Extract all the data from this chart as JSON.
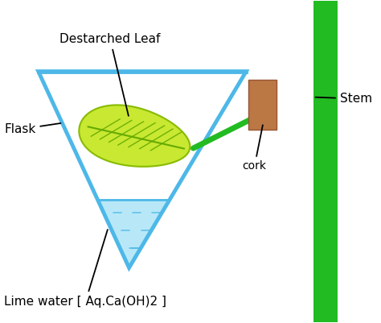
{
  "flask_color": "#4db8e8",
  "flask_linewidth": 3.5,
  "water_color": "#b8e8f8",
  "water_line_color": "#4db8e8",
  "leaf_fill_color": "#c8e832",
  "leaf_edge_color": "#88bb00",
  "leaf_vein_color": "#66aa00",
  "stem_green": "#22bb22",
  "cork_color": "#bb7744",
  "background": "#ffffff",
  "label_color": "#000000",
  "labels": {
    "destarched_leaf": "Destarched Leaf",
    "flask": "Flask",
    "lime_water": "Lime water [ Aq.Ca(OH)2 ]",
    "cork": "cork",
    "stem": "Stem"
  },
  "figsize": [
    4.74,
    4.01
  ],
  "dpi": 100
}
